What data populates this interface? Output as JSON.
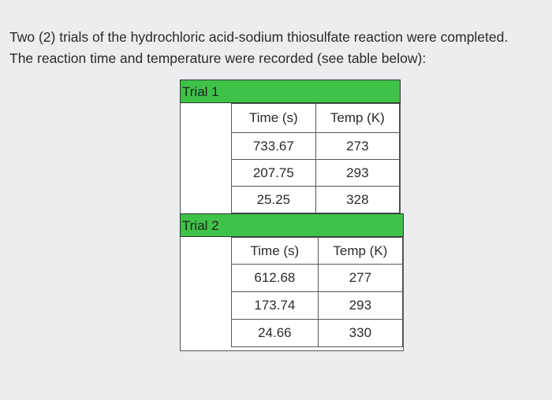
{
  "intro": {
    "line1": "Two (2) trials of the hydrochloric acid-sodium thiosulfate reaction were completed.",
    "line2": "The reaction time and temperature were recorded (see table below):"
  },
  "trials": [
    {
      "label": "Trial 1",
      "headers": [
        "Time (s)",
        "Temp (K)"
      ],
      "rows": [
        [
          "733.67",
          "273"
        ],
        [
          "207.75",
          "293"
        ],
        [
          "25.25",
          "328"
        ]
      ]
    },
    {
      "label": "Trial 2",
      "headers": [
        "Time (s)",
        "Temp (K)"
      ],
      "rows": [
        [
          "612.68",
          "277"
        ],
        [
          "173.74",
          "293"
        ],
        [
          "24.66",
          "330"
        ]
      ]
    }
  ]
}
